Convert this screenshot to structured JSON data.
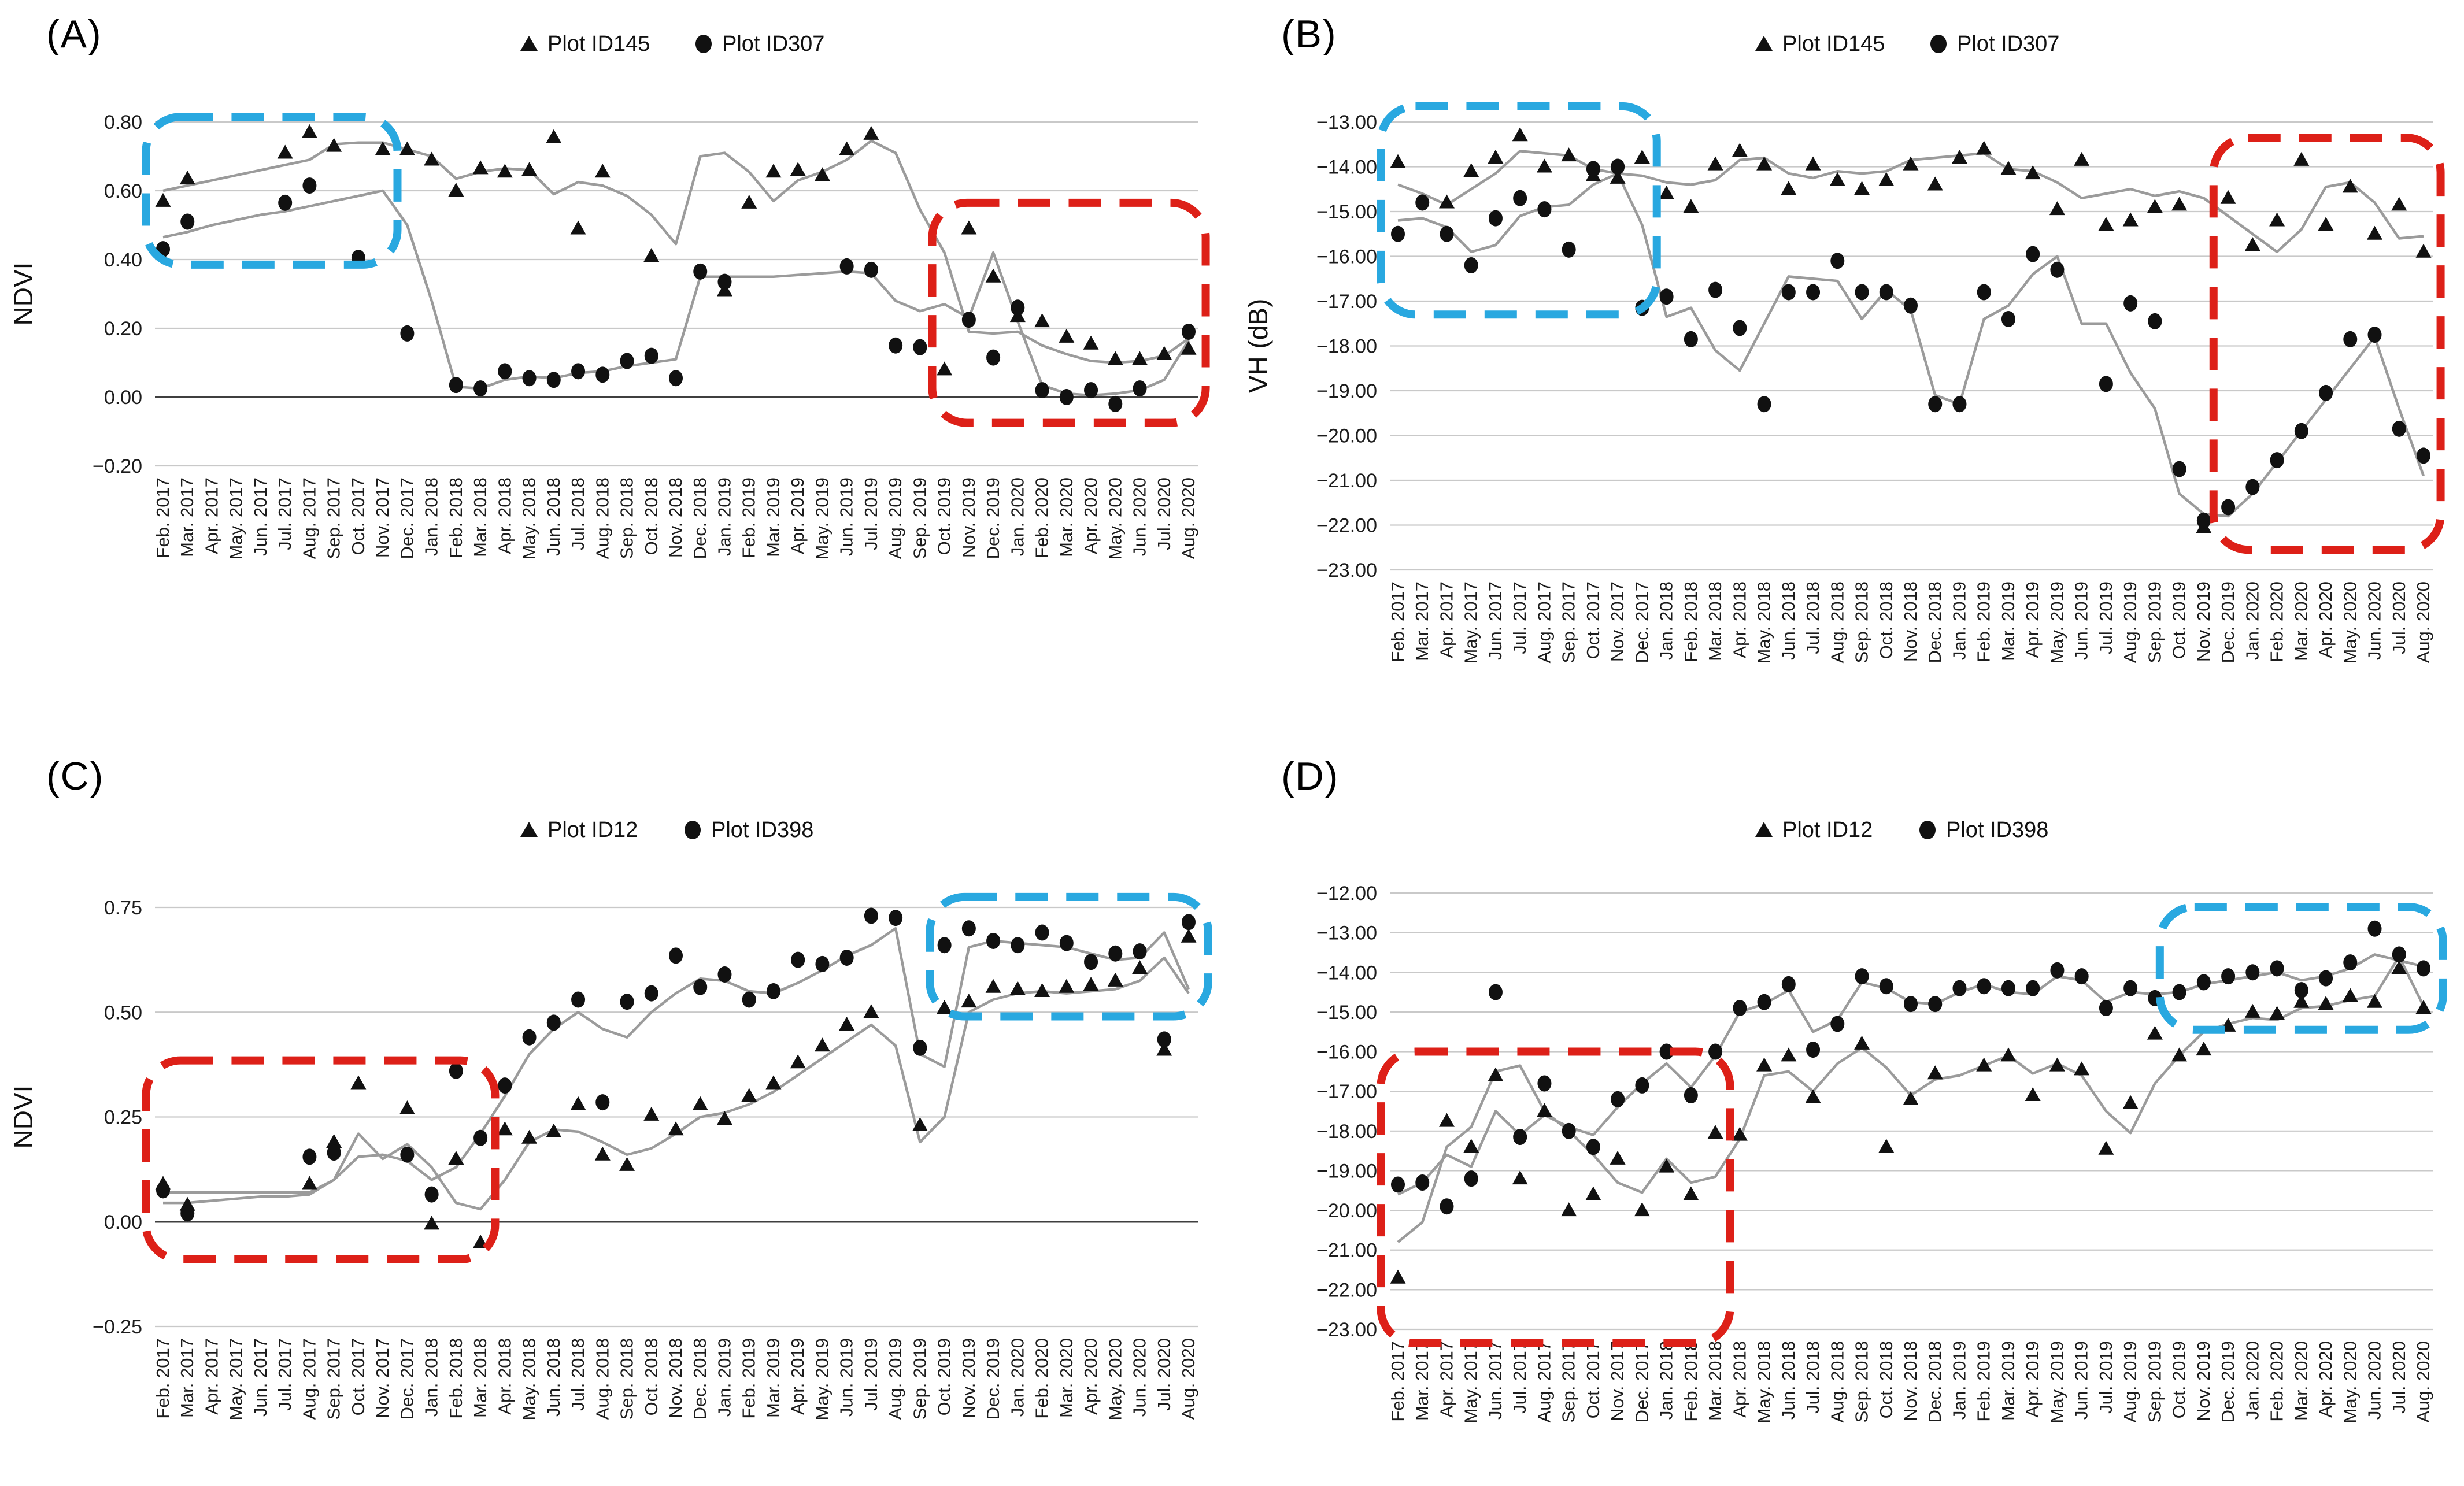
{
  "figure": {
    "panel_count": 4,
    "colors": {
      "marker": "#111111",
      "trend_line": "#9b9b9b",
      "gridline": "#c9c9c9",
      "zero_axis": "#3f3f3f",
      "highlight_blue": "#29a8e0",
      "highlight_red": "#dd2018"
    }
  },
  "months": [
    "Feb. 2017",
    "Mar. 2017",
    "Apr. 2017",
    "May. 2017",
    "Jun. 2017",
    "Jul. 2017",
    "Aug. 2017",
    "Sep. 2017",
    "Oct. 2017",
    "Nov. 2017",
    "Dec. 2017",
    "Jan. 2018",
    "Feb. 2018",
    "Mar. 2018",
    "Apr. 2018",
    "May. 2018",
    "Jun. 2018",
    "Jul. 2018",
    "Aug. 2018",
    "Sep. 2018",
    "Oct. 2018",
    "Nov. 2018",
    "Dec. 2018",
    "Jan. 2019",
    "Feb. 2019",
    "Mar. 2019",
    "Apr. 2019",
    "May. 2019",
    "Jun. 2019",
    "Jul. 2019",
    "Aug. 2019",
    "Sep. 2019",
    "Oct. 2019",
    "Nov. 2019",
    "Dec. 2019",
    "Jan. 2020",
    "Feb. 2020",
    "Mar. 2020",
    "Apr. 2020",
    "May. 2020",
    "Jun. 2020",
    "Jul. 2020",
    "Aug. 2020"
  ],
  "chart_data": [
    {
      "type": "scatter",
      "panel_label": "(A)",
      "ylabel": "NDVI",
      "legend": [
        {
          "marker": "triangle",
          "label": "Plot ID145"
        },
        {
          "marker": "circle",
          "label": "Plot ID307"
        }
      ],
      "axis": {
        "max": 0.8,
        "min": -0.2,
        "step": 0.2,
        "decimals": 2,
        "dark_line_at": 0
      },
      "series": [
        {
          "name": "Plot ID145",
          "kind": "scatter",
          "marker": "triangle",
          "values": [
            0.57,
            0.635,
            null,
            null,
            null,
            0.71,
            0.77,
            0.73,
            null,
            0.72,
            0.72,
            0.69,
            0.6,
            0.665,
            0.655,
            0.66,
            0.755,
            0.49,
            0.655,
            null,
            0.41,
            null,
            null,
            0.31,
            0.565,
            0.655,
            0.66,
            0.645,
            0.72,
            0.765,
            null,
            null,
            0.08,
            0.49,
            0.35,
            0.235,
            0.22,
            0.175,
            0.155,
            0.11,
            0.11,
            0.125,
            0.14
          ]
        },
        {
          "name": "Plot ID307",
          "kind": "scatter",
          "marker": "circle",
          "values": [
            0.43,
            0.51,
            null,
            null,
            null,
            0.565,
            0.615,
            null,
            0.405,
            null,
            0.185,
            null,
            0.035,
            0.025,
            0.075,
            0.055,
            0.05,
            0.075,
            0.065,
            0.105,
            0.12,
            0.055,
            0.365,
            0.335,
            null,
            null,
            null,
            null,
            0.38,
            0.37,
            0.15,
            0.145,
            null,
            0.225,
            0.115,
            0.26,
            0.02,
            0.0,
            0.02,
            -0.02,
            0.025,
            null,
            0.19
          ]
        },
        {
          "name": "Plot ID145 trend",
          "kind": "line",
          "values": [
            0.6,
            0.615,
            0.63,
            0.645,
            0.66,
            0.675,
            0.69,
            0.735,
            0.74,
            0.74,
            0.72,
            0.7,
            0.635,
            0.655,
            0.665,
            0.66,
            0.59,
            0.625,
            0.615,
            0.585,
            0.53,
            0.445,
            0.7,
            0.71,
            0.655,
            0.57,
            0.63,
            0.655,
            0.69,
            0.745,
            0.71,
            0.545,
            0.42,
            0.19,
            0.185,
            0.19,
            0.15,
            0.125,
            0.105,
            0.1,
            0.105,
            0.12,
            0.17
          ]
        },
        {
          "name": "Plot ID307 trend",
          "kind": "line",
          "values": [
            0.465,
            0.48,
            0.5,
            0.515,
            0.53,
            0.54,
            0.555,
            0.57,
            0.585,
            0.6,
            0.5,
            0.28,
            0.03,
            0.025,
            0.05,
            0.06,
            0.055,
            0.07,
            0.075,
            0.09,
            0.1,
            0.11,
            0.35,
            0.35,
            0.35,
            0.35,
            0.355,
            0.36,
            0.365,
            0.36,
            0.28,
            0.25,
            0.27,
            0.23,
            0.42,
            0.22,
            0.035,
            0.01,
            0.005,
            0.01,
            0.02,
            0.05,
            0.165
          ]
        }
      ],
      "boxes": [
        {
          "color": "blue",
          "x0": -0.7,
          "x1": 9.6,
          "y0": 0.385,
          "y1": 0.815
        },
        {
          "color": "red",
          "x0": 31.5,
          "x1": 42.7,
          "y0": -0.075,
          "y1": 0.565
        }
      ]
    },
    {
      "type": "scatter",
      "panel_label": "(B)",
      "ylabel": "VH (dB)",
      "legend": [
        {
          "marker": "triangle",
          "label": "Plot ID145"
        },
        {
          "marker": "circle",
          "label": "Plot ID307"
        }
      ],
      "axis": {
        "max": -13,
        "min": -23,
        "step": 1,
        "decimals": 2,
        "dark_line_at": null
      },
      "series": [
        {
          "name": "Plot ID145",
          "kind": "scatter",
          "marker": "triangle",
          "values": [
            -13.9,
            null,
            -14.8,
            -14.1,
            -13.8,
            -13.3,
            -14.0,
            -13.75,
            -14.2,
            -14.25,
            -13.8,
            -14.6,
            -14.9,
            -13.95,
            -13.65,
            -13.95,
            -14.5,
            -13.95,
            -14.3,
            -14.5,
            -14.3,
            -13.95,
            -14.4,
            -13.8,
            -13.6,
            -14.05,
            -14.15,
            -14.95,
            -13.85,
            -15.3,
            -15.2,
            -14.9,
            -14.85,
            -22.05,
            -14.7,
            -15.75,
            -15.2,
            -13.85,
            -15.3,
            -14.45,
            -15.5,
            -14.85,
            -15.9
          ]
        },
        {
          "name": "Plot ID307",
          "kind": "scatter",
          "marker": "circle",
          "values": [
            -15.5,
            -14.8,
            -15.5,
            -16.2,
            -15.15,
            -14.7,
            -14.95,
            -15.85,
            -14.05,
            -14.0,
            -17.15,
            -16.9,
            -17.85,
            -16.75,
            -17.6,
            -19.3,
            -16.8,
            -16.8,
            -16.1,
            -16.8,
            -16.8,
            -17.1,
            -19.3,
            -19.3,
            -16.8,
            -17.4,
            -15.95,
            -16.3,
            null,
            -18.85,
            -17.05,
            -17.45,
            -20.75,
            -21.9,
            -21.6,
            -21.15,
            -20.55,
            -19.9,
            -19.05,
            -17.85,
            -17.75,
            -19.85,
            -20.45
          ]
        },
        {
          "name": "Plot ID145 trend",
          "kind": "line",
          "values": [
            -14.4,
            -14.6,
            -14.85,
            -14.5,
            -14.15,
            -13.65,
            -13.7,
            -13.75,
            -14.05,
            -14.15,
            -14.2,
            -14.35,
            -14.4,
            -14.3,
            -13.85,
            -13.8,
            -14.15,
            -14.25,
            -14.1,
            -14.15,
            -14.1,
            -13.85,
            -13.8,
            -13.75,
            -13.7,
            -14.05,
            -14.1,
            -14.35,
            -14.7,
            -14.6,
            -14.5,
            -14.65,
            -14.55,
            -14.7,
            -15.1,
            -15.5,
            -15.9,
            -15.4,
            -14.45,
            -14.35,
            -14.8,
            -15.6,
            -15.55
          ]
        },
        {
          "name": "Plot ID307 trend",
          "kind": "line",
          "values": [
            -15.2,
            -15.15,
            -15.35,
            -15.9,
            -15.75,
            -15.1,
            -14.9,
            -14.85,
            -14.4,
            -14.15,
            -15.3,
            -17.35,
            -17.15,
            -18.1,
            -18.55,
            -17.5,
            -16.45,
            -16.5,
            -16.55,
            -17.4,
            -16.75,
            -17.2,
            -19.1,
            -19.3,
            -17.4,
            -17.1,
            -16.4,
            -16.0,
            -17.5,
            -17.5,
            -18.6,
            -19.4,
            -21.3,
            -21.75,
            -21.8,
            -21.3,
            -20.6,
            -19.9,
            -19.2,
            -18.5,
            -17.8,
            -19.4,
            -20.9
          ]
        }
      ],
      "boxes": [
        {
          "color": "blue",
          "x0": -0.7,
          "x1": 10.6,
          "y0": -17.3,
          "y1": -12.65
        },
        {
          "color": "red",
          "x0": 33.4,
          "x1": 42.7,
          "y0": -22.55,
          "y1": -13.35
        }
      ]
    },
    {
      "type": "scatter",
      "panel_label": "(C)",
      "ylabel": "NDVI",
      "legend": [
        {
          "marker": "triangle",
          "label": "Plot ID12"
        },
        {
          "marker": "circle",
          "label": "Plot ID398"
        }
      ],
      "axis": {
        "max": 0.75,
        "min": -0.25,
        "step": 0.25,
        "decimals": 2,
        "dark_line_at": 0
      },
      "series": [
        {
          "name": "Plot ID12",
          "kind": "scatter",
          "marker": "triangle",
          "values": [
            0.09,
            0.04,
            null,
            null,
            null,
            null,
            0.09,
            0.19,
            0.33,
            null,
            0.27,
            -0.005,
            0.15,
            -0.05,
            0.22,
            0.2,
            0.215,
            0.28,
            0.16,
            0.135,
            0.255,
            0.22,
            0.28,
            0.245,
            0.3,
            0.33,
            0.38,
            0.42,
            0.47,
            0.5,
            null,
            0.23,
            0.51,
            0.525,
            0.56,
            0.555,
            0.55,
            0.56,
            0.565,
            0.575,
            0.605,
            0.41,
            0.68
          ]
        },
        {
          "name": "Plot ID398",
          "kind": "scatter",
          "marker": "circle",
          "values": [
            0.075,
            0.02,
            null,
            null,
            null,
            null,
            0.155,
            0.165,
            null,
            null,
            0.16,
            0.065,
            0.36,
            0.2,
            0.325,
            0.44,
            0.475,
            0.53,
            0.285,
            0.525,
            0.545,
            0.635,
            0.56,
            0.59,
            0.53,
            0.55,
            0.625,
            0.615,
            0.63,
            0.73,
            0.725,
            0.415,
            0.66,
            0.7,
            0.67,
            0.66,
            0.69,
            0.665,
            0.62,
            0.64,
            0.645,
            0.435,
            0.715
          ]
        },
        {
          "name": "Plot ID12 trend",
          "kind": "line",
          "values": [
            0.045,
            0.045,
            0.05,
            0.055,
            0.06,
            0.06,
            0.065,
            0.1,
            0.21,
            0.15,
            0.185,
            0.13,
            0.045,
            0.03,
            0.1,
            0.19,
            0.22,
            0.215,
            0.19,
            0.16,
            0.175,
            0.21,
            0.25,
            0.26,
            0.28,
            0.31,
            0.35,
            0.39,
            0.43,
            0.47,
            0.42,
            0.19,
            0.25,
            0.5,
            0.53,
            0.545,
            0.55,
            0.545,
            0.55,
            0.555,
            0.575,
            0.63,
            0.545
          ]
        },
        {
          "name": "Plot ID398 trend",
          "kind": "line",
          "values": [
            0.07,
            0.07,
            0.07,
            0.07,
            0.07,
            0.07,
            0.07,
            0.1,
            0.155,
            0.16,
            0.145,
            0.1,
            0.13,
            0.21,
            0.3,
            0.4,
            0.46,
            0.5,
            0.46,
            0.44,
            0.5,
            0.545,
            0.58,
            0.575,
            0.55,
            0.545,
            0.57,
            0.6,
            0.635,
            0.66,
            0.7,
            0.4,
            0.37,
            0.655,
            0.67,
            0.665,
            0.66,
            0.655,
            0.64,
            0.625,
            0.63,
            0.69,
            0.555
          ]
        }
      ],
      "boxes": [
        {
          "color": "red",
          "x0": -0.7,
          "x1": 13.6,
          "y0": -0.09,
          "y1": 0.385
        },
        {
          "color": "blue",
          "x0": 31.4,
          "x1": 42.8,
          "y0": 0.49,
          "y1": 0.775
        }
      ]
    },
    {
      "type": "scatter",
      "panel_label": "(D)",
      "ylabel": "",
      "legend": [
        {
          "marker": "triangle",
          "label": "Plot ID12"
        },
        {
          "marker": "circle",
          "label": "Plot ID398"
        }
      ],
      "axis": {
        "max": -12,
        "min": -23,
        "step": 1,
        "decimals": 2,
        "dark_line_at": null
      },
      "series": [
        {
          "name": "Plot ID12",
          "kind": "scatter",
          "marker": "triangle",
          "values": [
            -21.7,
            null,
            -17.75,
            -18.4,
            -16.6,
            -19.2,
            -17.5,
            -20.0,
            -19.6,
            -18.7,
            -20.0,
            -18.9,
            -19.6,
            -18.05,
            -18.1,
            -16.35,
            -16.1,
            -17.15,
            null,
            -15.8,
            -18.4,
            -17.2,
            -16.55,
            null,
            -16.35,
            -16.1,
            -17.1,
            -16.35,
            -16.45,
            -18.45,
            -17.3,
            -15.55,
            -16.1,
            -15.95,
            -15.35,
            -15.0,
            -15.05,
            -14.75,
            -14.8,
            -14.6,
            -14.75,
            -13.9,
            -14.9
          ]
        },
        {
          "name": "Plot ID398",
          "kind": "scatter",
          "marker": "circle",
          "values": [
            -19.35,
            -19.3,
            -19.9,
            -19.2,
            -14.5,
            -18.15,
            -16.8,
            -18.0,
            -18.4,
            -17.2,
            -16.85,
            -16.0,
            -17.1,
            -16.0,
            -14.9,
            -14.75,
            -14.3,
            -15.95,
            -15.3,
            -14.1,
            -14.35,
            -14.8,
            -14.8,
            -14.4,
            -14.35,
            -14.4,
            -14.4,
            -13.95,
            -14.1,
            -14.9,
            -14.4,
            -14.65,
            -14.5,
            -14.25,
            -14.1,
            -14.0,
            -13.9,
            -14.45,
            -14.15,
            -13.75,
            -12.9,
            -13.55,
            -13.9
          ]
        },
        {
          "name": "Plot ID12 trend",
          "kind": "line",
          "values": [
            -20.8,
            -20.3,
            -18.4,
            -17.9,
            -16.5,
            -16.35,
            -17.5,
            -18.0,
            -18.6,
            -19.3,
            -19.55,
            -18.7,
            -19.3,
            -19.15,
            -18.2,
            -16.6,
            -16.5,
            -17.0,
            -16.3,
            -15.9,
            -16.4,
            -17.1,
            -16.7,
            -16.6,
            -16.35,
            -16.1,
            -16.55,
            -16.3,
            -16.6,
            -17.5,
            -18.05,
            -16.8,
            -16.1,
            -15.5,
            -15.3,
            -15.15,
            -15.2,
            -14.9,
            -14.85,
            -14.7,
            -14.6,
            -13.6,
            -14.85
          ]
        },
        {
          "name": "Plot ID398 trend",
          "kind": "line",
          "values": [
            -19.6,
            -19.3,
            -18.6,
            -18.9,
            -17.5,
            -18.1,
            -17.6,
            -17.9,
            -18.1,
            -17.4,
            -16.8,
            -16.3,
            -16.9,
            -16.1,
            -15.0,
            -14.8,
            -14.45,
            -15.5,
            -15.2,
            -14.25,
            -14.4,
            -14.75,
            -14.8,
            -14.5,
            -14.3,
            -14.5,
            -14.55,
            -14.1,
            -14.2,
            -14.75,
            -14.5,
            -14.55,
            -14.5,
            -14.3,
            -14.2,
            -14.1,
            -14.0,
            -14.2,
            -14.1,
            -13.9,
            -13.55,
            -13.7,
            -13.85
          ]
        }
      ],
      "boxes": [
        {
          "color": "red",
          "x0": -0.7,
          "x1": 13.6,
          "y0": -23.35,
          "y1": -16.0
        },
        {
          "color": "blue",
          "x0": 31.2,
          "x1": 42.8,
          "y0": -15.45,
          "y1": -12.35
        }
      ]
    }
  ]
}
